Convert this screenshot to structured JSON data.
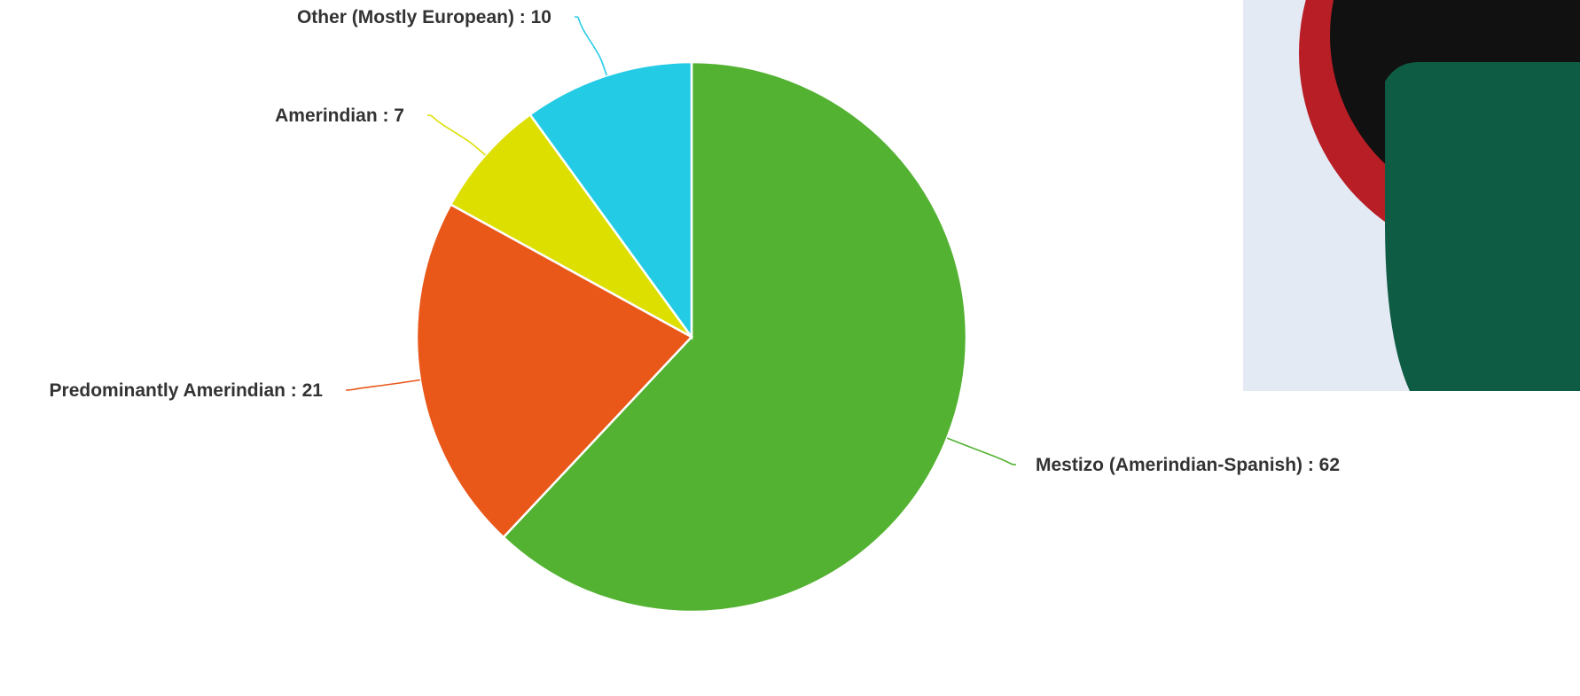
{
  "chart_data": {
    "type": "pie",
    "title": "",
    "slices": [
      {
        "label": "Mestizo (Amerindian-Spanish)",
        "value": 62,
        "color": "#53b232"
      },
      {
        "label": "Predominantly Amerindian",
        "value": 21,
        "color": "#e95719"
      },
      {
        "label": "Amerindian",
        "value": 7,
        "color": "#dddf00"
      },
      {
        "label": "Other (Mostly European)",
        "value": 10,
        "color": "#24cbe5"
      }
    ],
    "data_labels": [
      "Mestizo (Amerindian-Spanish) : 62",
      "Predominantly Amerindian : 21",
      "Amerindian : 7",
      "Other (Mostly European) : 10"
    ],
    "legend": "none",
    "start_angle": "12 o'clock",
    "direction": "clockwise"
  },
  "decoration": {
    "panel_bg": "#e4eaf4",
    "ring_outer": "#b81e26",
    "ring_inner": "#111111",
    "shape_green": "#0f5c45"
  }
}
